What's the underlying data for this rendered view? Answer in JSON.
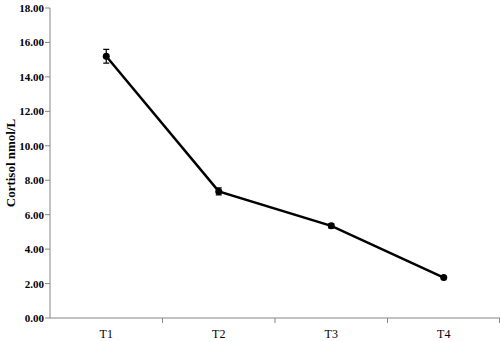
{
  "chart_data": {
    "type": "line",
    "y_label": "Cortisol nmol/L",
    "categories": [
      "T1",
      "T2",
      "T3",
      "T4"
    ],
    "values": [
      15.2,
      7.35,
      5.35,
      2.35
    ],
    "errors": [
      0.4,
      0.2,
      0.12,
      0.05
    ],
    "color": "#000000",
    "marker": "circle",
    "grid": false,
    "ylim": [
      0,
      18
    ],
    "yticks": [
      {
        "value": 0,
        "label": "0.00"
      },
      {
        "value": 2,
        "label": "2.00"
      },
      {
        "value": 4,
        "label": "4.00"
      },
      {
        "value": 6,
        "label": "6.00"
      },
      {
        "value": 8,
        "label": "8.00"
      },
      {
        "value": 10,
        "label": "10.00"
      },
      {
        "value": 12,
        "label": "12.00"
      },
      {
        "value": 14,
        "label": "14.00"
      },
      {
        "value": 16,
        "label": "16.00"
      },
      {
        "value": 18,
        "label": "18.00"
      }
    ]
  }
}
